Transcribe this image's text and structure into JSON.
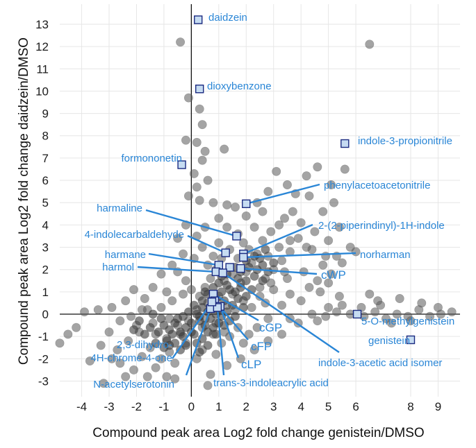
{
  "chart_data": {
    "type": "scatter",
    "title": "",
    "xlabel": "Compound peak area Log2 fold change genistein/DMSO",
    "ylabel": "Compound peak area Log2 fold change daidzein/DMSO",
    "xlim": [
      -4.8,
      9.8
    ],
    "ylim": [
      -3.7,
      13.9
    ],
    "x_ticks": [
      "-4",
      "-3",
      "-2",
      "-1",
      "0",
      "1",
      "2",
      "3",
      "4",
      "5",
      "6",
      "8",
      "9"
    ],
    "x_tick_values": [
      -4,
      -3,
      -2,
      -1,
      0,
      1,
      2,
      3,
      4,
      5,
      6,
      8,
      9
    ],
    "y_ticks": [
      13,
      12,
      11,
      10,
      9,
      8,
      7,
      6,
      5,
      4,
      3,
      2,
      1,
      0,
      -1,
      -2,
      -3
    ],
    "grid": true,
    "colors": {
      "points": "#5a5a5a",
      "highlight_fill": "#c6dcf2",
      "highlight_stroke": "#1a2a80",
      "annotation": "#2a86d6"
    },
    "background_points": [
      [
        -0.4,
        12.2
      ],
      [
        6.5,
        12.1
      ],
      [
        -0.1,
        9.7
      ],
      [
        0.3,
        9.2
      ],
      [
        0.4,
        8.5
      ],
      [
        -0.2,
        7.8
      ],
      [
        0.2,
        7.7
      ],
      [
        0.5,
        7.3
      ],
      [
        1.2,
        7.4
      ],
      [
        0.4,
        6.9
      ],
      [
        0.1,
        6.3
      ],
      [
        0.6,
        6.0
      ],
      [
        0.2,
        5.7
      ],
      [
        -0.1,
        5.3
      ],
      [
        0.3,
        5.1
      ],
      [
        0.8,
        5.0
      ],
      [
        1.3,
        4.9
      ],
      [
        1.6,
        4.8
      ],
      [
        2.0,
        4.4
      ],
      [
        2.4,
        5.0
      ],
      [
        2.8,
        5.5
      ],
      [
        3.1,
        6.4
      ],
      [
        3.5,
        5.8
      ],
      [
        3.8,
        5.4
      ],
      [
        4.2,
        6.2
      ],
      [
        4.6,
        6.6
      ],
      [
        5.1,
        5.8
      ],
      [
        5.6,
        6.5
      ],
      [
        5.2,
        5.0
      ],
      [
        4.8,
        4.6
      ],
      [
        4.3,
        5.3
      ],
      [
        3.7,
        4.6
      ],
      [
        3.2,
        4.0
      ],
      [
        2.9,
        3.7
      ],
      [
        2.6,
        3.3
      ],
      [
        2.3,
        3.9
      ],
      [
        4.0,
        4.1
      ],
      [
        4.5,
        3.7
      ],
      [
        5.0,
        3.3
      ],
      [
        5.4,
        3.9
      ],
      [
        5.8,
        3.0
      ],
      [
        5.5,
        2.3
      ],
      [
        4.9,
        2.6
      ],
      [
        4.4,
        2.9
      ],
      [
        3.9,
        3.4
      ],
      [
        3.6,
        2.8
      ],
      [
        3.3,
        2.4
      ],
      [
        3.0,
        2.0
      ],
      [
        2.7,
        1.6
      ],
      [
        3.5,
        1.6
      ],
      [
        4.1,
        1.9
      ],
      [
        4.6,
        1.5
      ],
      [
        5.1,
        1.8
      ],
      [
        2.5,
        1.2
      ],
      [
        3.0,
        1.1
      ],
      [
        3.6,
        0.9
      ],
      [
        4.0,
        0.6
      ],
      [
        4.7,
        1.0
      ],
      [
        3.3,
        0.4
      ],
      [
        2.7,
        0.5
      ],
      [
        1.0,
        4.3
      ],
      [
        1.3,
        3.9
      ],
      [
        1.7,
        3.6
      ],
      [
        0.5,
        3.9
      ],
      [
        0.2,
        3.5
      ],
      [
        -0.2,
        4.0
      ],
      [
        -0.5,
        3.4
      ],
      [
        0.4,
        3.0
      ],
      [
        0.8,
        2.6
      ],
      [
        0.1,
        2.5
      ],
      [
        -0.3,
        2.7
      ],
      [
        -0.7,
        2.2
      ],
      [
        -1.1,
        1.8
      ],
      [
        -0.5,
        1.9
      ],
      [
        -0.2,
        1.5
      ],
      [
        0.0,
        1.1
      ],
      [
        -1.4,
        1.2
      ],
      [
        -0.9,
        1.0
      ],
      [
        -2.1,
        1.1
      ],
      [
        -1.7,
        0.7
      ],
      [
        -2.4,
        0.6
      ],
      [
        -2.9,
        0.3
      ],
      [
        -3.4,
        0.2
      ],
      [
        -3.9,
        0.1
      ],
      [
        -2.6,
        -0.3
      ],
      [
        -2.2,
        -0.1
      ],
      [
        -1.6,
        0.2
      ],
      [
        -1.9,
        -0.8
      ],
      [
        -2.3,
        -1.2
      ],
      [
        -1.5,
        -1.5
      ],
      [
        -1.1,
        -2.0
      ],
      [
        -0.8,
        -1.7
      ],
      [
        -1.3,
        -2.4
      ],
      [
        -0.9,
        -2.8
      ],
      [
        -0.6,
        -2.2
      ],
      [
        -0.2,
        -1.3
      ],
      [
        -0.4,
        -0.9
      ],
      [
        -3.0,
        -0.8
      ],
      [
        -3.3,
        -1.4
      ],
      [
        -3.7,
        -2.1
      ],
      [
        -4.5,
        -0.9
      ],
      [
        -4.8,
        -1.3
      ],
      [
        -4.2,
        -0.6
      ],
      [
        -3.2,
        -3.1
      ],
      [
        -2.6,
        -2.2
      ],
      [
        -2.1,
        -2.5
      ],
      [
        -1.8,
        -1.9
      ],
      [
        -0.6,
        -2.9
      ],
      [
        0.6,
        -3.2
      ],
      [
        0.7,
        -2.7
      ],
      [
        1.3,
        -2.3
      ],
      [
        1.8,
        -2.0
      ],
      [
        2.3,
        -1.6
      ],
      [
        2.8,
        -1.2
      ],
      [
        3.3,
        -0.9
      ],
      [
        3.9,
        -0.4
      ],
      [
        1.9,
        -1.3
      ],
      [
        1.4,
        -1.0
      ],
      [
        2.4,
        -0.6
      ],
      [
        2.8,
        -0.2
      ],
      [
        4.4,
        0.0
      ],
      [
        4.9,
        -0.1
      ],
      [
        5.3,
        0.1
      ],
      [
        5.8,
        0.0
      ],
      [
        6.3,
        -0.1
      ],
      [
        6.7,
        0.1
      ],
      [
        7.1,
        -0.2
      ],
      [
        7.5,
        0.0
      ],
      [
        7.9,
        -0.1
      ],
      [
        8.3,
        0.2
      ],
      [
        8.7,
        -0.1
      ],
      [
        9.1,
        0.0
      ],
      [
        9.5,
        0.1
      ],
      [
        7.3,
        -0.4
      ],
      [
        8.0,
        -0.3
      ],
      [
        6.9,
        0.4
      ],
      [
        7.6,
        0.7
      ],
      [
        8.4,
        0.5
      ],
      [
        9.0,
        0.3
      ],
      [
        6.2,
        0.3
      ],
      [
        6.5,
        0.9
      ],
      [
        6.8,
        0.6
      ],
      [
        5.5,
        0.4
      ],
      [
        4.6,
        -0.3
      ],
      [
        5.0,
        0.3
      ],
      [
        3.6,
        -0.2
      ],
      [
        2.1,
        -0.9
      ],
      [
        1.7,
        -0.6
      ],
      [
        2.5,
        0.8
      ],
      [
        1.6,
        0.2
      ],
      [
        1.9,
        0.6
      ],
      [
        2.2,
        0.3
      ],
      [
        1.5,
        0.9
      ],
      [
        1.2,
        1.5
      ],
      [
        1.5,
        1.8
      ],
      [
        1.8,
        1.4
      ],
      [
        2.0,
        1.9
      ],
      [
        2.2,
        2.3
      ],
      [
        2.4,
        2.7
      ],
      [
        2.1,
        2.9
      ],
      [
        1.9,
        3.2
      ],
      [
        1.4,
        2.9
      ],
      [
        1.1,
        2.5
      ],
      [
        0.9,
        2.0
      ],
      [
        0.7,
        1.6
      ],
      [
        0.5,
        1.2
      ],
      [
        0.3,
        0.8
      ],
      [
        0.6,
        0.5
      ],
      [
        1.0,
        0.8
      ],
      [
        1.3,
        0.4
      ],
      [
        0.2,
        0.2
      ],
      [
        0.5,
        -0.2
      ],
      [
        0.9,
        -0.4
      ],
      [
        1.2,
        -0.8
      ],
      [
        0.8,
        -0.9
      ],
      [
        0.4,
        -0.6
      ],
      [
        -0.1,
        -0.3
      ],
      [
        -0.5,
        -0.5
      ],
      [
        -0.8,
        -0.2
      ],
      [
        -1.1,
        0.3
      ],
      [
        -1.4,
        -0.4
      ],
      [
        -0.9,
        -1.1
      ],
      [
        -1.3,
        -0.9
      ],
      [
        -0.7,
        0.6
      ],
      [
        -0.3,
        0.9
      ],
      [
        -1.8,
        0.2
      ],
      [
        -2.0,
        -0.5
      ],
      [
        -2.7,
        -1.6
      ],
      [
        -2.9,
        -2.0
      ],
      [
        -2.4,
        -2.8
      ],
      [
        -1.6,
        -2.8
      ],
      [
        0.2,
        -2.0
      ],
      [
        0.4,
        -1.6
      ],
      [
        0.9,
        -1.8
      ],
      [
        1.1,
        -1.3
      ],
      [
        2.6,
        4.6
      ],
      [
        3.4,
        4.3
      ],
      [
        1.0,
        3.2
      ],
      [
        0.6,
        2.2
      ],
      [
        1.7,
        2.5
      ],
      [
        2.8,
        2.6
      ],
      [
        3.2,
        3.0
      ],
      [
        3.6,
        3.3
      ],
      [
        4.2,
        3.0
      ],
      [
        4.8,
        2.2
      ],
      [
        5.3,
        2.6
      ],
      [
        6.0,
        2.8
      ],
      [
        5.0,
        1.4
      ],
      [
        4.3,
        1.2
      ],
      [
        5.4,
        0.8
      ],
      [
        3.4,
        1.9
      ],
      [
        2.9,
        1.4
      ]
    ],
    "dense_cluster_points": [
      [
        0.2,
        0.0
      ],
      [
        0.4,
        0.3
      ],
      [
        0.6,
        0.1
      ],
      [
        0.8,
        0.4
      ],
      [
        1.0,
        0.2
      ],
      [
        1.2,
        0.6
      ],
      [
        0.3,
        -0.3
      ],
      [
        0.5,
        -0.5
      ],
      [
        0.7,
        -0.2
      ],
      [
        0.9,
        0.0
      ],
      [
        1.1,
        -0.1
      ],
      [
        1.3,
        0.1
      ],
      [
        0.0,
        -0.4
      ],
      [
        -0.2,
        -0.6
      ],
      [
        -0.4,
        -0.8
      ],
      [
        -0.6,
        -0.4
      ],
      [
        -0.8,
        -0.7
      ],
      [
        -1.0,
        -0.5
      ],
      [
        -0.3,
        -1.0
      ],
      [
        0.1,
        -0.9
      ],
      [
        0.4,
        -1.1
      ],
      [
        0.6,
        -0.8
      ],
      [
        0.8,
        -0.6
      ],
      [
        1.0,
        -0.4
      ],
      [
        1.4,
        -0.3
      ],
      [
        1.5,
        0.4
      ],
      [
        1.7,
        0.7
      ],
      [
        1.4,
        1.1
      ],
      [
        1.1,
        1.0
      ],
      [
        0.9,
        0.7
      ],
      [
        0.6,
        0.9
      ],
      [
        0.4,
        0.6
      ],
      [
        0.1,
        0.4
      ],
      [
        -0.1,
        0.1
      ],
      [
        -0.3,
        -0.1
      ],
      [
        -0.5,
        -0.2
      ],
      [
        -0.7,
        -0.9
      ],
      [
        -0.9,
        -1.2
      ],
      [
        -1.2,
        -0.8
      ],
      [
        -1.5,
        -0.6
      ],
      [
        -1.3,
        -1.3
      ],
      [
        -1.0,
        -1.5
      ],
      [
        -0.6,
        -1.3
      ],
      [
        -0.2,
        -1.4
      ],
      [
        0.2,
        -1.3
      ],
      [
        0.0,
        -0.8
      ],
      [
        0.3,
        -0.1
      ],
      [
        0.7,
        0.3
      ],
      [
        1.6,
        1.0
      ],
      [
        1.8,
        1.2
      ],
      [
        2.0,
        1.5
      ],
      [
        1.7,
        1.6
      ],
      [
        1.3,
        1.3
      ],
      [
        1.0,
        1.4
      ],
      [
        0.8,
        1.2
      ],
      [
        0.5,
        1.0
      ],
      [
        2.2,
        1.1
      ],
      [
        2.0,
        0.8
      ],
      [
        1.9,
        0.3
      ],
      [
        1.6,
        -0.1
      ],
      [
        1.2,
        -0.5
      ],
      [
        0.9,
        -0.9
      ],
      [
        -0.4,
        -1.6
      ],
      [
        -0.8,
        -1.4
      ],
      [
        0.6,
        -1.4
      ],
      [
        0.3,
        -1.7
      ],
      [
        -1.7,
        -0.9
      ],
      [
        -1.9,
        -0.3
      ],
      [
        -2.1,
        -0.7
      ],
      [
        -1.4,
        0.0
      ],
      [
        -1.1,
        -0.2
      ],
      [
        2.4,
        2.0
      ],
      [
        2.6,
        2.2
      ],
      [
        2.3,
        1.7
      ],
      [
        2.1,
        2.1
      ],
      [
        1.8,
        1.9
      ],
      [
        2.6,
        1.5
      ],
      [
        2.8,
        1.9
      ],
      [
        3.0,
        2.3
      ],
      [
        2.5,
        2.5
      ],
      [
        2.7,
        2.9
      ],
      [
        2.3,
        2.6
      ],
      [
        2.0,
        2.4
      ],
      [
        1.6,
        2.1
      ],
      [
        1.3,
        1.8
      ],
      [
        1.1,
        1.7
      ]
    ],
    "highlighted_points": [
      {
        "name": "daidzein",
        "x": 0.25,
        "y": 13.2
      },
      {
        "name": "dioxybenzone",
        "x": 0.3,
        "y": 10.1
      },
      {
        "name": "indole-3-propionitrile",
        "x": 5.6,
        "y": 7.65
      },
      {
        "name": "formononetin",
        "x": -0.35,
        "y": 6.7
      },
      {
        "name": "phenylacetoacetonitrile",
        "x": 2.0,
        "y": 4.95
      },
      {
        "name": "harmaline",
        "x": 1.65,
        "y": 3.5
      },
      {
        "name": "4-indolecarbaldehyde",
        "x": 1.25,
        "y": 2.75
      },
      {
        "name": "2-(2-piperindinyl)-1H-indole",
        "x": 1.9,
        "y": 2.7
      },
      {
        "name": "norharman",
        "x": 1.9,
        "y": 2.55
      },
      {
        "name": "harmane",
        "x": 1.0,
        "y": 2.2
      },
      {
        "name": "cWP",
        "x": 1.8,
        "y": 2.05
      },
      {
        "name": "cWP-2",
        "x": 1.4,
        "y": 2.1
      },
      {
        "name": "harmol",
        "x": 0.9,
        "y": 1.9
      },
      {
        "name": "indole-3-acetic acid isomer",
        "x": 1.15,
        "y": 1.85
      },
      {
        "name": "cGP",
        "x": 0.8,
        "y": 0.9
      },
      {
        "name": "cFP",
        "x": 0.85,
        "y": 0.6
      },
      {
        "name": "cLP",
        "x": 1.05,
        "y": 0.35
      },
      {
        "name": "N-acetylserotonin",
        "x": 0.7,
        "y": 0.25
      },
      {
        "name": "trans-3-indoleacrylic acid",
        "x": 0.95,
        "y": 0.3
      },
      {
        "name": "2,3-dihydro-4H-chrome-4-one",
        "x": 0.75,
        "y": 0.55
      },
      {
        "name": "5-O-methylgenistein",
        "x": 6.05,
        "y": 0.0
      },
      {
        "name": "genistein",
        "x": 8.0,
        "y": -1.15
      }
    ],
    "annotations": [
      {
        "lines": [
          "daidzein"
        ],
        "point": "daidzein",
        "side": "right",
        "big": false,
        "leader": false
      },
      {
        "lines": [
          "dioxybenzone"
        ],
        "point": "dioxybenzone",
        "side": "right",
        "big": false,
        "leader": false
      },
      {
        "lines": [
          "indole-3-propionitrile"
        ],
        "point": "indole-3-propionitrile",
        "side": "right",
        "big": false,
        "leader": false
      },
      {
        "lines": [
          "formononetin"
        ],
        "point": "formononetin",
        "side": "left",
        "big": false,
        "leader": false
      },
      {
        "lines": [
          "phenylacetoacetonitrile"
        ],
        "point": "phenylacetoacetonitrile",
        "side": "right",
        "big": false,
        "leader": true
      },
      {
        "lines": [
          "harmaline"
        ],
        "point": "harmaline",
        "side": "left",
        "big": false,
        "leader": true
      },
      {
        "lines": [
          "4-indolecarbaldehyde"
        ],
        "point": "4-indolecarbaldehyde",
        "side": "left",
        "big": false,
        "leader": true
      },
      {
        "lines": [
          "2-(2-piperindinyl)-1H-indole"
        ],
        "point": "2-(2-piperindinyl)-1H-indole",
        "side": "right",
        "big": false,
        "leader": true
      },
      {
        "lines": [
          "norharman"
        ],
        "point": "norharman",
        "side": "right",
        "big": false,
        "leader": true
      },
      {
        "lines": [
          "harmane"
        ],
        "point": "harmane",
        "side": "left",
        "big": false,
        "leader": true
      },
      {
        "lines": [
          "harmol"
        ],
        "point": "harmol",
        "side": "left",
        "big": false,
        "leader": true
      },
      {
        "lines": [
          "cWP"
        ],
        "point": "cWP",
        "side": "right",
        "big": true,
        "leader": true
      },
      {
        "lines": [
          "indole-3-acetic acid isomer"
        ],
        "point": "indole-3-acetic acid isomer",
        "side": "right",
        "big": false,
        "leader": true
      },
      {
        "lines": [
          "cGP"
        ],
        "point": "cGP",
        "side": "right",
        "big": true,
        "leader": true
      },
      {
        "lines": [
          "cFP"
        ],
        "point": "cFP",
        "side": "right",
        "big": true,
        "leader": true
      },
      {
        "lines": [
          "cLP"
        ],
        "point": "cLP",
        "side": "right",
        "big": true,
        "leader": true
      },
      {
        "lines": [
          "trans-3-indoleacrylic acid"
        ],
        "point": "trans-3-indoleacrylic acid",
        "side": "right",
        "big": false,
        "leader": true
      },
      {
        "lines": [
          "N-acetylserotonin"
        ],
        "point": "N-acetylserotonin",
        "side": "left",
        "big": false,
        "leader": true
      },
      {
        "lines": [
          "2,3-dihydro-",
          "4H-chrome-4-one"
        ],
        "point": "2,3-dihydro-4H-chrome-4-one",
        "side": "left",
        "big": false,
        "leader": true
      },
      {
        "lines": [
          "5-O-methylgenistein"
        ],
        "point": "5-O-methylgenistein",
        "side": "right",
        "big": false,
        "leader": false
      },
      {
        "lines": [
          "genistein"
        ],
        "point": "genistein",
        "side": "right",
        "big": false,
        "leader": false
      }
    ]
  }
}
